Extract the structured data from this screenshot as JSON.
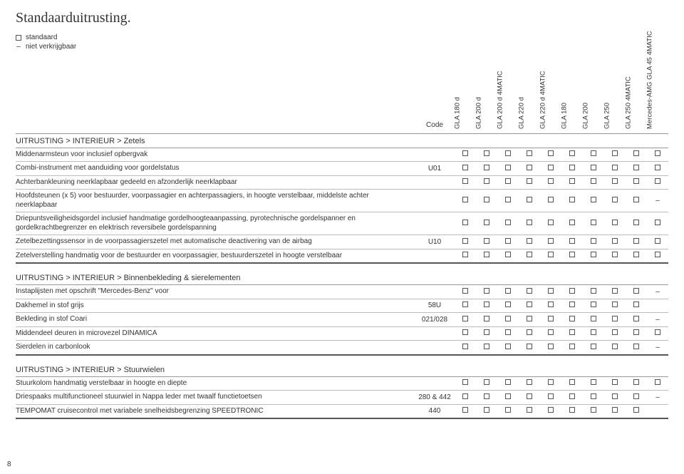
{
  "title": "Standaarduitrusting.",
  "legend": {
    "std": "standaard",
    "na": "niet verkrijgbaar"
  },
  "code_header": "Code",
  "variants": [
    "GLA 180 d",
    "GLA 200 d",
    "GLA 200 d 4MATIC",
    "GLA 220 d",
    "GLA 220 d 4MATIC",
    "GLA 180",
    "GLA 200",
    "GLA 250",
    "GLA 250 4MATIC",
    "Mercedes-AMG GLA 45 4MATIC"
  ],
  "sections": [
    {
      "heading": "UITRUSTING > INTERIEUR > Zetels",
      "rows": [
        {
          "label": "Middenarmsteun voor inclusief opbergvak",
          "code": "",
          "cells": [
            "s",
            "s",
            "s",
            "s",
            "s",
            "s",
            "s",
            "s",
            "s",
            "s"
          ]
        },
        {
          "label": "Combi-instrument met aanduiding voor gordelstatus",
          "code": "U01",
          "cells": [
            "s",
            "s",
            "s",
            "s",
            "s",
            "s",
            "s",
            "s",
            "s",
            "s"
          ]
        },
        {
          "label": "Achterbankleuning neerklapbaar gedeeld en afzonderlijk neerklapbaar",
          "code": "",
          "cells": [
            "s",
            "s",
            "s",
            "s",
            "s",
            "s",
            "s",
            "s",
            "s",
            "s"
          ]
        },
        {
          "label": "Hoofdsteunen (x 5) voor bestuurder, voorpassagier en achterpassagiers, in hoogte verstelbaar, middelste achter neerklapbaar",
          "code": "",
          "cells": [
            "s",
            "s",
            "s",
            "s",
            "s",
            "s",
            "s",
            "s",
            "s",
            "–"
          ]
        },
        {
          "label": "Driepuntsveiligheidsgordel inclusief handmatige gordelhoogteaanpassing, pyrotechnische gordelspanner en gordelkrachtbegrenzer en elektrisch reversibele gordelspanning",
          "code": "",
          "cells": [
            "s",
            "s",
            "s",
            "s",
            "s",
            "s",
            "s",
            "s",
            "s",
            "s"
          ]
        },
        {
          "label": "Zetelbezettingssensor in de voorpassagierszetel met automatische deactivering van de airbag",
          "code": "U10",
          "cells": [
            "s",
            "s",
            "s",
            "s",
            "s",
            "s",
            "s",
            "s",
            "s",
            "s"
          ]
        },
        {
          "label": "Zetelverstelling handmatig voor de bestuurder en voorpassagier, bestuurderszetel in hoogte verstelbaar",
          "code": "",
          "cells": [
            "s",
            "s",
            "s",
            "s",
            "s",
            "s",
            "s",
            "s",
            "s",
            "s"
          ]
        }
      ]
    },
    {
      "heading": "UITRUSTING > INTERIEUR > Binnenbekleding & sierelementen",
      "rows": [
        {
          "label": "Instaplijsten met opschrift \"Mercedes-Benz\" voor",
          "code": "",
          "cells": [
            "s",
            "s",
            "s",
            "s",
            "s",
            "s",
            "s",
            "s",
            "s",
            "–"
          ]
        },
        {
          "label": "Dakhemel in stof grijs",
          "code": "58U",
          "cells": [
            "s",
            "s",
            "s",
            "s",
            "s",
            "s",
            "s",
            "s",
            "s",
            ""
          ]
        },
        {
          "label": "Bekleding in stof Coari",
          "code": "021/028",
          "cells": [
            "s",
            "s",
            "s",
            "s",
            "s",
            "s",
            "s",
            "s",
            "s",
            "–"
          ]
        },
        {
          "label": "Middendeel deuren in microvezel DINAMICA",
          "code": "",
          "cells": [
            "s",
            "s",
            "s",
            "s",
            "s",
            "s",
            "s",
            "s",
            "s",
            "s"
          ]
        },
        {
          "label": "Sierdelen in carbonlook",
          "code": "",
          "cells": [
            "s",
            "s",
            "s",
            "s",
            "s",
            "s",
            "s",
            "s",
            "s",
            "–"
          ]
        }
      ]
    },
    {
      "heading": "UITRUSTING > INTERIEUR > Stuurwielen",
      "rows": [
        {
          "label": "Stuurkolom handmatig verstelbaar in hoogte en diepte",
          "code": "",
          "cells": [
            "s",
            "s",
            "s",
            "s",
            "s",
            "s",
            "s",
            "s",
            "s",
            "s"
          ]
        },
        {
          "label": "Driespaaks multifunctioneel stuurwiel in Nappa leder met twaalf functietoetsen",
          "code": "280 & 442",
          "cells": [
            "s",
            "s",
            "s",
            "s",
            "s",
            "s",
            "s",
            "s",
            "s",
            "–"
          ]
        },
        {
          "label": "TEMPOMAT cruisecontrol met variabele snelheidsbegrenzing SPEEDTRONIC",
          "code": "440",
          "cells": [
            "s",
            "s",
            "s",
            "s",
            "s",
            "s",
            "s",
            "s",
            "s",
            ""
          ]
        }
      ]
    }
  ],
  "page_number": "8",
  "colors": {
    "text": "#333333",
    "border": "#bbbbbb",
    "border_dark": "#555555",
    "heading_border": "#999999",
    "background": "#ffffff"
  }
}
